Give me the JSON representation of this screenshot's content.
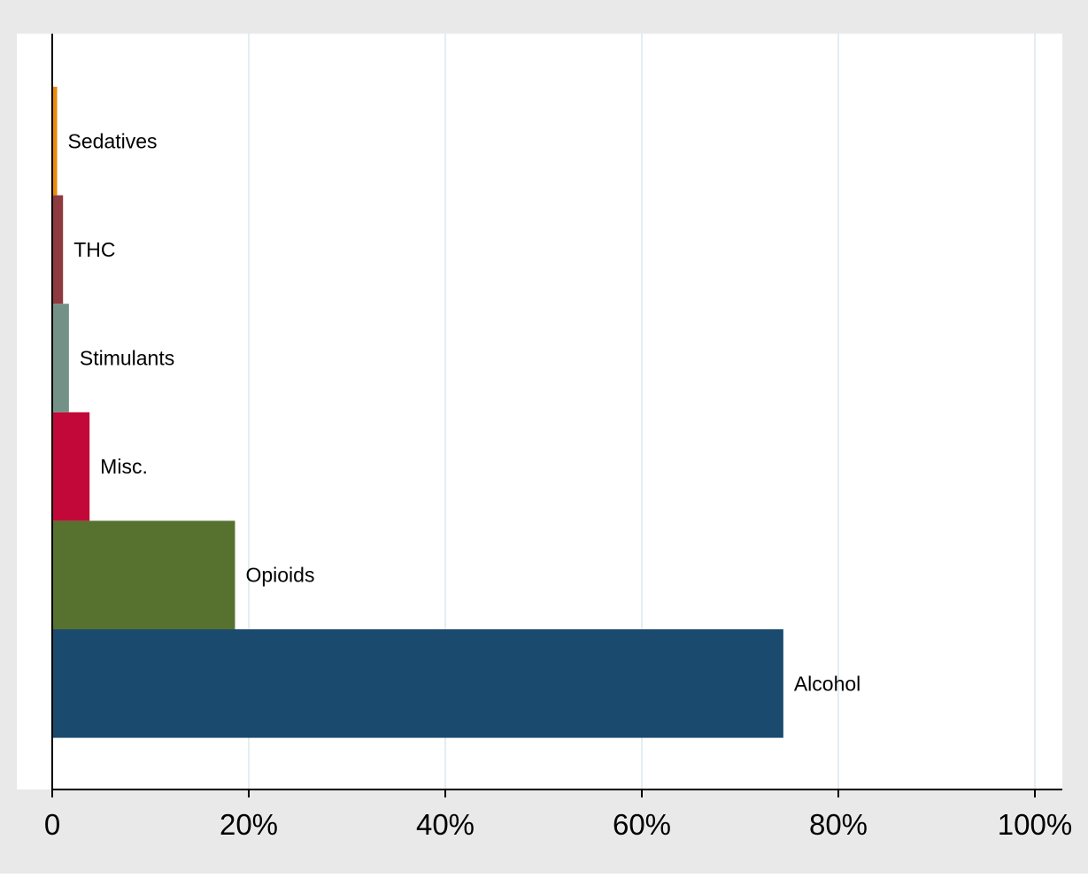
{
  "chart_data": {
    "type": "bar",
    "orientation": "horizontal",
    "categories": [
      "Alcohol",
      "Opioids",
      "Misc.",
      "Stimulants",
      "THC",
      "Sedatives"
    ],
    "values": [
      74.4,
      18.6,
      3.8,
      1.7,
      1.1,
      0.5
    ],
    "colors": [
      "#1b4a6f",
      "#57722f",
      "#c20838",
      "#739187",
      "#8e3a3f",
      "#eb8b0c"
    ],
    "xlim": [
      0,
      100
    ],
    "xticks": [
      0,
      20,
      40,
      60,
      80,
      100
    ],
    "xtick_labels": [
      "0",
      "20%",
      "40%",
      "60%",
      "80%",
      "100%"
    ],
    "grid": "vertical",
    "title": "",
    "xlabel": "",
    "ylabel": "",
    "legend": "none",
    "background_outer": "#e9e9e9",
    "background_plot": "#ffffff",
    "gridline_color": "#e3eef1",
    "axis_color": "#000000"
  }
}
